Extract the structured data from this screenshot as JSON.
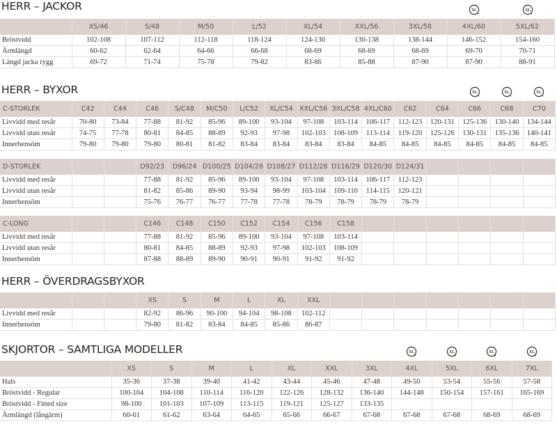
{
  "sections": [
    {
      "title": "HERR – JACKOR",
      "tables": [
        {
          "header": [
            "",
            "XS/46",
            "S/48",
            "M/50",
            "L/52",
            "XL/54",
            "XXL/56",
            "3XL/58",
            "4XL/60",
            "5XL/62"
          ],
          "xl_icon_columns": [
            "4XL/60",
            "5XL/62"
          ],
          "rows": [
            {
              "label": "Bröstvidd",
              "values": [
                "102-108",
                "107-112",
                "112-118",
                "118-124",
                "124-130",
                "130-138",
                "138-144",
                "146-152",
                "154-160"
              ]
            },
            {
              "label": "Ärmlängd",
              "values": [
                "60-62",
                "62-64",
                "64-66",
                "66-68",
                "68-69",
                "68-69",
                "68-69",
                "69-70",
                "70-71"
              ]
            },
            {
              "label": "Längd jacka rygg",
              "values": [
                "69-72",
                "71-74",
                "75-78",
                "79-82",
                "83-86",
                "85-88",
                "87-90",
                "87-90",
                "88-91"
              ]
            }
          ]
        }
      ]
    },
    {
      "title": "HERR – BYXOR",
      "tables": [
        {
          "header": [
            "C-STORLEK",
            "C42",
            "C44",
            "C46",
            "S/C48",
            "M/C50",
            "L/C52",
            "XL/C54",
            "XXL/C56",
            "3XL/C58",
            "4XL/C60",
            "C62",
            "C64",
            "C66",
            "C68",
            "C70"
          ],
          "xl_icon_columns": [
            "C66",
            "C68",
            "C70"
          ],
          "rows": [
            {
              "label": "Livvidd med resår",
              "values": [
                "70-80",
                "73-84",
                "77-88",
                "81-92",
                "85-96",
                "89-100",
                "93-104",
                "97-108",
                "103-114",
                "106-117",
                "112-123",
                "120-131",
                "125-136",
                "130-140",
                "134-144"
              ]
            },
            {
              "label": "Livvidd utan resår",
              "values": [
                "74-75",
                "77-78",
                "80-81",
                "84-85",
                "88-89",
                "92-93",
                "97-98",
                "102-103",
                "108-109",
                "113-114",
                "119-120",
                "125-126",
                "130-131",
                "135-136",
                "140-141"
              ]
            },
            {
              "label": "Innerbensöm",
              "values": [
                "79-80",
                "79-80",
                "79-80",
                "80-81",
                "81-82",
                "83-84",
                "83-84",
                "83-84",
                "83-84",
                "84-85",
                "84-85",
                "84-85",
                "84-85",
                "84-85",
                "84-85"
              ]
            }
          ]
        },
        {
          "header": [
            "D-STORLEK",
            "",
            "",
            "D92/23",
            "D96/24",
            "D100/25",
            "D104/26",
            "D108/27",
            "D112/28",
            "D116/29",
            "D120/30",
            "D124/31",
            "",
            "",
            "",
            ""
          ],
          "rows": [
            {
              "label": "Livvidd med resår",
              "values": [
                "",
                "",
                "77-88",
                "81-92",
                "85-96",
                "89-100",
                "93-104",
                "97-108",
                "103-114",
                "106-117",
                "112-123",
                "",
                "",
                "",
                ""
              ]
            },
            {
              "label": "Livvidd utan resår",
              "values": [
                "",
                "",
                "81-82",
                "85-86",
                "89-90",
                "93-94",
                "98-99",
                "103-104",
                "109-110",
                "114-115",
                "120-121",
                "",
                "",
                "",
                ""
              ]
            },
            {
              "label": "Innerbensöm",
              "values": [
                "",
                "",
                "75-76",
                "76-77",
                "76-77",
                "77-78",
                "77-78",
                "78-79",
                "78-79",
                "78-79",
                "78-79",
                "",
                "",
                "",
                ""
              ]
            }
          ]
        },
        {
          "header": [
            "C-LONG",
            "",
            "",
            "C146",
            "C148",
            "C150",
            "C152",
            "C154",
            "C156",
            "C158",
            "",
            "",
            "",
            "",
            "",
            ""
          ],
          "rows": [
            {
              "label": "Livvidd med resår",
              "values": [
                "",
                "",
                "77-88",
                "81-92",
                "85-96",
                "89-100",
                "93-104",
                "97-108",
                "103-114",
                "",
                "",
                "",
                "",
                "",
                ""
              ]
            },
            {
              "label": "Livvidd utan resår",
              "values": [
                "",
                "",
                "80-81",
                "84-85",
                "88-89",
                "92-93",
                "97-98",
                "102-103",
                "108-109",
                "",
                "",
                "",
                "",
                "",
                ""
              ]
            },
            {
              "label": "Innerbensöm",
              "values": [
                "",
                "",
                "87-88",
                "88-89",
                "89-90",
                "90-91",
                "90-91",
                "91-92",
                "91-92",
                "",
                "",
                "",
                "",
                "",
                ""
              ]
            }
          ]
        }
      ]
    },
    {
      "title": "HERR – ÖVERDRAGSBYXOR",
      "tables": [
        {
          "header": [
            "",
            "",
            "",
            "XS",
            "S",
            "M",
            "L",
            "XL",
            "XXL",
            "",
            "",
            "",
            "",
            "",
            "",
            ""
          ],
          "rows": [
            {
              "label": "Livvidd med resår",
              "values": [
                "",
                "",
                "82-92",
                "86-96",
                "90-100",
                "94-104",
                "98-108",
                "102-112",
                "",
                "",
                "",
                "",
                "",
                "",
                ""
              ]
            },
            {
              "label": "Innerbensöm",
              "values": [
                "",
                "",
                "79-80",
                "81-82",
                "83-84",
                "84-85",
                "85-86",
                "86-87",
                "",
                "",
                "",
                "",
                "",
                "",
                ""
              ]
            }
          ]
        }
      ]
    },
    {
      "title": "SKJORTOR – SAMTLIGA MODELLER",
      "tables": [
        {
          "header": [
            "",
            "XS",
            "S",
            "M",
            "L",
            "XL",
            "XXL",
            "3XL",
            "4XL",
            "5XL",
            "6XL",
            "7XL"
          ],
          "xl_icon_columns": [
            "4XL",
            "5XL",
            "6XL",
            "7XL"
          ],
          "rows": [
            {
              "label": "Hals",
              "values": [
                "35-36",
                "37-38",
                "39-40",
                "41-42",
                "43-44",
                "45-46",
                "47-48",
                "49-50",
                "53-54",
                "55-56",
                "57-58"
              ]
            },
            {
              "label": "Bröstvidd - Regular",
              "values": [
                "100-104",
                "104-108",
                "110-114",
                "116-120",
                "122-126",
                "128-132",
                "136-140",
                "144-148",
                "150-154",
                "157-161",
                "165-169"
              ]
            },
            {
              "label": "Bröstvidd -  Fitted size",
              "values": [
                "98-100",
                "101-103",
                "107-109",
                "113-115",
                "119-121",
                "125-127",
                "133-135",
                "",
                "",
                "",
                ""
              ]
            },
            {
              "label": "Ärmlängd (långärm)",
              "values": [
                "60-61",
                "61-62",
                "63-64",
                "64-65",
                "65-66",
                "66-67",
                "67-68",
                "67-68",
                "67-68",
                "68-69",
                "68-69"
              ]
            }
          ]
        }
      ]
    }
  ],
  "icons": {
    "xl_marker": "xl-size-badge-icon"
  },
  "colors": {
    "header_bg": "#dcd1cd",
    "header_text": "#5c5252",
    "grid": "#e4dedc"
  }
}
